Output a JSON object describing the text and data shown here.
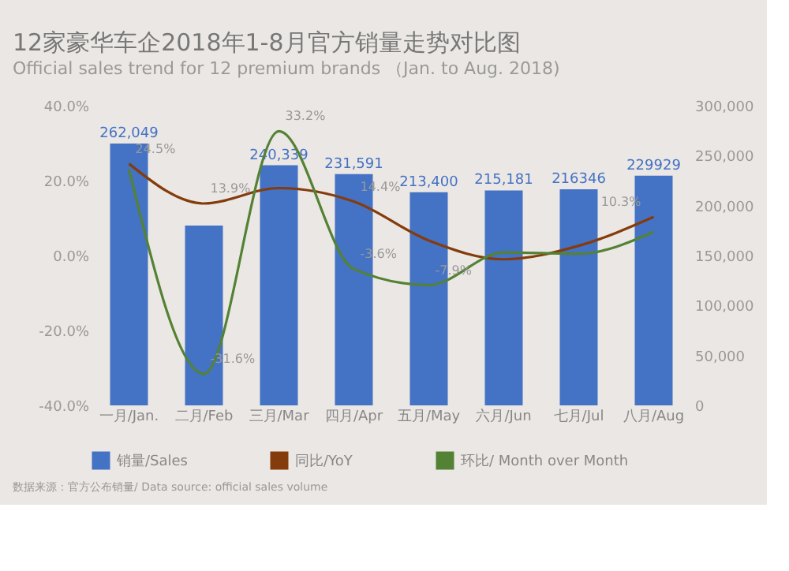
{
  "chart_data": {
    "type": "bar",
    "title": "12家豪华车企2018年1-8月官方销量走势对比图",
    "subtitle": "Official sales trend for 12 premium brands （Jan. to Aug. 2018)",
    "categories": [
      "一月/Jan.",
      "二月/Feb",
      "三月/Mar",
      "四月/Apr",
      "五月/May",
      "六月/Jun",
      "七月/Jul",
      "八月/Aug"
    ],
    "series": [
      {
        "name": "销量/Sales",
        "axis": "y2",
        "color": "#4472c4",
        "values": [
          262049,
          180000,
          240339,
          231591,
          213400,
          215181,
          216346,
          229929
        ],
        "value_labels": [
          "262,049",
          null,
          "240,339",
          "231,591",
          "213,400",
          "215,181",
          "216346",
          "229929"
        ]
      },
      {
        "name": "同比/YoY",
        "type": "line",
        "axis": "y",
        "color": "#843c0c",
        "values": [
          24.5,
          13.9,
          18,
          14.4,
          4,
          -1,
          2.6,
          10.3
        ],
        "value_labels": [
          "24.5%",
          "13.9%",
          null,
          "14.4%",
          null,
          null,
          null,
          "10.3%"
        ]
      },
      {
        "name": "环比/ Month over Month",
        "type": "line",
        "axis": "y",
        "color": "#548235",
        "values": [
          23,
          -31.6,
          33.2,
          -3.6,
          -7.9,
          0.8,
          0.5,
          6.3
        ],
        "value_labels": [
          null,
          "-31.6%",
          "33.2%",
          "-3.6%",
          "-7.9%",
          null,
          null,
          null
        ]
      }
    ],
    "ylim": [
      -40,
      40
    ],
    "yticks": [
      {
        "value": -40,
        "label": "-40.0%"
      },
      {
        "value": -20,
        "label": "-20.0%"
      },
      {
        "value": 0,
        "label": "0.0%"
      },
      {
        "value": 20,
        "label": "20.0%"
      },
      {
        "value": 40,
        "label": "40.0%"
      }
    ],
    "y2lim": [
      0,
      300000
    ],
    "y2ticks": [
      0,
      {
        "value": 50000,
        "label": "50,000"
      },
      {
        "value": 100000,
        "label": "100,000"
      },
      {
        "value": 150000,
        "label": "150,000"
      },
      {
        "value": 200000,
        "label": "200,000"
      },
      {
        "value": 250000,
        "label": "250,000"
      },
      {
        "value": 300000,
        "label": "300,000"
      }
    ],
    "legend": "bottom",
    "grid": false,
    "marker": "none",
    "line_style": "solid",
    "annotations": [
      "数据来源：官方公布销量/ Data source: official sales volume"
    ]
  }
}
